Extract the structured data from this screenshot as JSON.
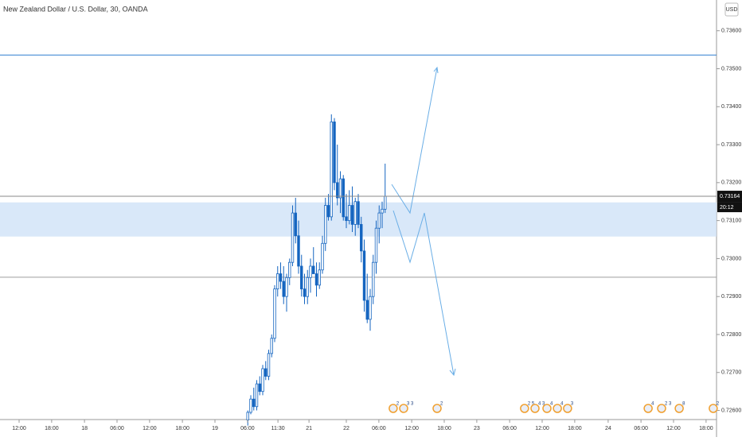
{
  "header": {
    "symbol": "New Zealand Dollar / U.S. Dollar, 30, OANDA",
    "currency_button": "USD"
  },
  "chart_data": {
    "type": "candlestick",
    "x": [
      83,
      84,
      85,
      86,
      87,
      88,
      89,
      90,
      91,
      92,
      93,
      94,
      95,
      96,
      97,
      98,
      99,
      100,
      101,
      102,
      103,
      104,
      105,
      106,
      107,
      108,
      109,
      110,
      111,
      112,
      113,
      114,
      115,
      116,
      117,
      118,
      119,
      120,
      121,
      122,
      123,
      124,
      125,
      126,
      127,
      128,
      129
    ],
    "open": [
      0.72575,
      0.72595,
      0.7263,
      0.7261,
      0.7267,
      0.7265,
      0.7271,
      0.7269,
      0.7275,
      0.7279,
      0.7292,
      0.7296,
      0.7294,
      0.729,
      0.7295,
      0.7299,
      0.7312,
      0.7306,
      0.7298,
      0.7292,
      0.729,
      0.7295,
      0.7298,
      0.7296,
      0.7293,
      0.7297,
      0.7304,
      0.7314,
      0.7311,
      0.7336,
      0.732,
      0.7316,
      0.7321,
      0.7311,
      0.731,
      0.7314,
      0.7309,
      0.7315,
      0.7309,
      0.7302,
      0.7289,
      0.7284,
      0.729,
      0.7299,
      0.7308,
      0.7312,
      0.7313
    ],
    "high": [
      0.726,
      0.7264,
      0.7266,
      0.7268,
      0.7269,
      0.7272,
      0.7273,
      0.7276,
      0.728,
      0.7293,
      0.7298,
      0.7299,
      0.7298,
      0.7296,
      0.73,
      0.7314,
      0.7316,
      0.731,
      0.7301,
      0.7296,
      0.7297,
      0.73,
      0.7303,
      0.7299,
      0.7299,
      0.7306,
      0.7316,
      0.7317,
      0.7338,
      0.7337,
      0.733,
      0.7323,
      0.7322,
      0.7317,
      0.7318,
      0.7319,
      0.7316,
      0.7317,
      0.7311,
      0.7305,
      0.7296,
      0.7292,
      0.7301,
      0.731,
      0.7314,
      0.7315,
      0.7325
    ],
    "low": [
      0.7256,
      0.7259,
      0.726,
      0.726,
      0.7264,
      0.7264,
      0.7268,
      0.7268,
      0.7274,
      0.7278,
      0.729,
      0.7292,
      0.7288,
      0.7286,
      0.7293,
      0.7298,
      0.7304,
      0.7296,
      0.729,
      0.7288,
      0.7288,
      0.7291,
      0.7296,
      0.729,
      0.7292,
      0.7296,
      0.7302,
      0.731,
      0.731,
      0.7318,
      0.7314,
      0.7312,
      0.731,
      0.7308,
      0.7309,
      0.7307,
      0.7306,
      0.7308,
      0.7299,
      0.7286,
      0.7283,
      0.7281,
      0.7288,
      0.7296,
      0.7304,
      0.7308,
      0.7312
    ],
    "close": [
      0.72595,
      0.7263,
      0.7261,
      0.7267,
      0.7265,
      0.7271,
      0.7269,
      0.7275,
      0.7279,
      0.7292,
      0.7296,
      0.7294,
      0.729,
      0.7295,
      0.7299,
      0.7312,
      0.7306,
      0.7298,
      0.7292,
      0.729,
      0.7295,
      0.7298,
      0.7296,
      0.7293,
      0.7297,
      0.7304,
      0.7314,
      0.7311,
      0.7336,
      0.732,
      0.7316,
      0.7321,
      0.7311,
      0.731,
      0.7314,
      0.7309,
      0.7315,
      0.7309,
      0.7302,
      0.7289,
      0.7284,
      0.729,
      0.7299,
      0.7308,
      0.7312,
      0.7313,
      0.73164
    ],
    "up_color": "#ffffff",
    "down_color": "#1565c0",
    "wick_color": "#1565c0",
    "xlim": [
      0,
      240
    ],
    "ylim": [
      0.7253,
      0.73681
    ],
    "xticks": [
      {
        "value": 6.4,
        "label": "12:00"
      },
      {
        "value": 17.3,
        "label": "18:00"
      },
      {
        "value": 28.3,
        "label": "18"
      },
      {
        "value": 39.2,
        "label": "06:00"
      },
      {
        "value": 50.1,
        "label": "12:00"
      },
      {
        "value": 61.1,
        "label": "18:00"
      },
      {
        "value": 72,
        "label": "19"
      },
      {
        "value": 82.9,
        "label": "06:00"
      },
      {
        "value": 93.1,
        "label": "11:30"
      },
      {
        "value": 103.5,
        "label": "21"
      },
      {
        "value": 116,
        "label": "22"
      },
      {
        "value": 126.9,
        "label": "06:00"
      },
      {
        "value": 137.9,
        "label": "12:00"
      },
      {
        "value": 148.8,
        "label": "18:00"
      },
      {
        "value": 159.7,
        "label": "23"
      },
      {
        "value": 170.7,
        "label": "06:00"
      },
      {
        "value": 181.6,
        "label": "12:00"
      },
      {
        "value": 192.5,
        "label": "18:00"
      },
      {
        "value": 203.7,
        "label": "24"
      },
      {
        "value": 214.7,
        "label": "06:00"
      },
      {
        "value": 225.6,
        "label": "12:00"
      },
      {
        "value": 236.5,
        "label": "18:00"
      }
    ],
    "yticks": [
      {
        "value": 0.736,
        "label": "0.73600"
      },
      {
        "value": 0.735,
        "label": "0.73500"
      },
      {
        "value": 0.734,
        "label": "0.73400"
      },
      {
        "value": 0.733,
        "label": "0.73300"
      },
      {
        "value": 0.732,
        "label": "0.73200"
      },
      {
        "value": 0.731,
        "label": "0.73100"
      },
      {
        "value": 0.73,
        "label": "0.73000"
      },
      {
        "value": 0.729,
        "label": "0.72900"
      },
      {
        "value": 0.728,
        "label": "0.72800"
      },
      {
        "value": 0.727,
        "label": "0.72700"
      },
      {
        "value": 0.726,
        "label": "0.72600"
      }
    ],
    "last_price": {
      "value": 0.73164,
      "label": "0.73164",
      "countdown": "20:12"
    },
    "levels": [
      {
        "value": 0.73536,
        "color": "#2f7fd0"
      },
      {
        "value": 0.72951,
        "color": "#9e9e9e"
      }
    ],
    "zone": {
      "from": 0.73058,
      "to": 0.73148,
      "color": "#cfe2f7"
    },
    "events": [
      {
        "x": 131.7,
        "label": "2"
      },
      {
        "x": 135.2,
        "label": "3 3"
      },
      {
        "x": 146.4,
        "label": "2"
      },
      {
        "x": 175.7,
        "label": "2 5"
      },
      {
        "x": 179.2,
        "label": "4 3"
      },
      {
        "x": 183.2,
        "label": "4"
      },
      {
        "x": 186.7,
        "label": "4"
      },
      {
        "x": 190.1,
        "label": "3"
      },
      {
        "x": 217.1,
        "label": "4"
      },
      {
        "x": 221.6,
        "label": "2 3"
      },
      {
        "x": 227.5,
        "label": "8"
      },
      {
        "x": 238.9,
        "label": "2"
      }
    ]
  }
}
